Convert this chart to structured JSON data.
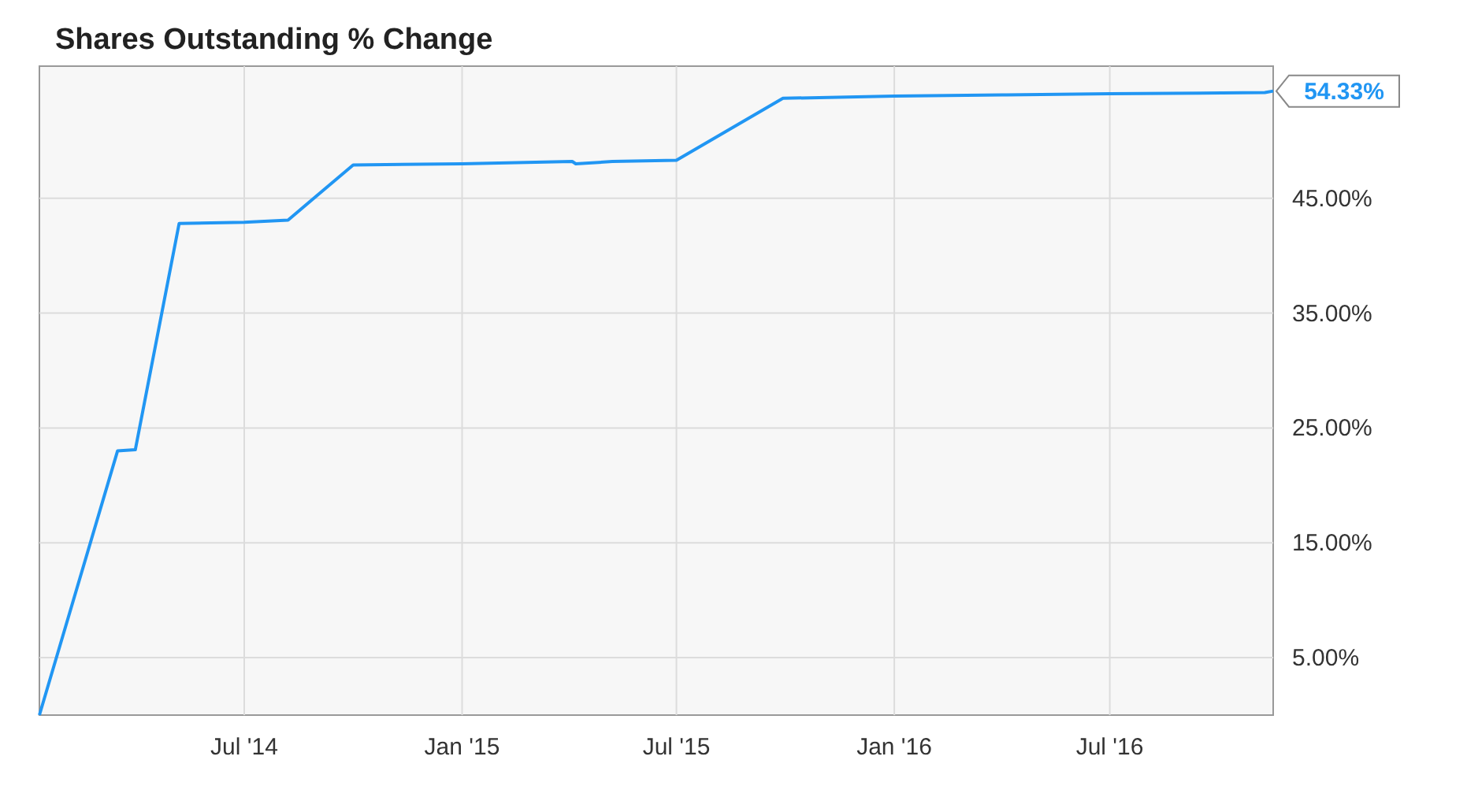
{
  "chart_data": {
    "type": "line",
    "title": "Shares Outstanding % Change",
    "x": [
      "2014-01-09",
      "2014-03-16",
      "2014-03-31",
      "2014-05-07",
      "2014-07-01",
      "2014-08-07",
      "2014-10-01",
      "2015-01-01",
      "2015-04-04",
      "2015-04-07",
      "2015-05-08",
      "2015-07-01",
      "2015-09-29",
      "2016-01-01",
      "2016-04-05",
      "2016-07-01",
      "2016-11-09",
      "2016-11-16"
    ],
    "series": [
      {
        "color": "#2196f3",
        "values": [
          0,
          23.0,
          23.1,
          42.8,
          42.9,
          43.1,
          47.9,
          48.0,
          48.2,
          48.0,
          48.2,
          48.3,
          53.7,
          53.9,
          54.0,
          54.1,
          54.2,
          54.33
        ]
      }
    ],
    "xlim": [
      "2014-01-09",
      "2016-11-16"
    ],
    "xticks": [
      {
        "value": "2014-07-01",
        "label": "Jul '14"
      },
      {
        "value": "2015-01-01",
        "label": "Jan '15"
      },
      {
        "value": "2015-07-01",
        "label": "Jul '15"
      },
      {
        "value": "2016-01-01",
        "label": "Jan '16"
      },
      {
        "value": "2016-07-01",
        "label": "Jul '16"
      }
    ],
    "ylim": [
      0,
      56.5
    ],
    "yticks": [
      {
        "value": 5,
        "label": "5.00%"
      },
      {
        "value": 15,
        "label": "15.00%"
      },
      {
        "value": 25,
        "label": "25.00%"
      },
      {
        "value": 35,
        "label": "35.00%"
      },
      {
        "value": 45,
        "label": "45.00%"
      }
    ],
    "annotations": [
      {
        "text": "54.33%",
        "x": "2016-11-16",
        "y": 54.33
      }
    ],
    "grid": true,
    "marker": "none",
    "line_style": "solid"
  }
}
